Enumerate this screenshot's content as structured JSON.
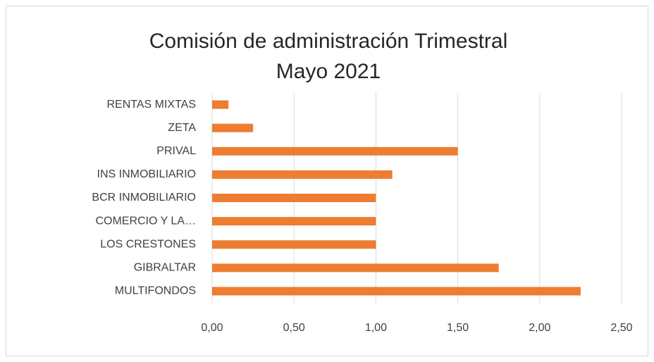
{
  "chart_data": {
    "type": "barh",
    "title": "Comisión de administración Trimestral",
    "subtitle": "Mayo 2021",
    "categories": [
      "MULTIFONDOS",
      "GIBRALTAR",
      "LOS CRESTONES",
      "COMERCIO Y LA…",
      "BCR INMOBILIARIO",
      "INS INMOBILIARIO",
      "PRIVAL",
      "ZETA",
      "RENTAS MIXTAS"
    ],
    "values": [
      2.25,
      1.75,
      1.0,
      1.0,
      1.0,
      1.1,
      1.5,
      0.25,
      0.1
    ],
    "color": "#ed7d31",
    "xlim": [
      0,
      2.5
    ],
    "xticks": [
      {
        "value": 0,
        "label": "0,00"
      },
      {
        "value": 0.5,
        "label": "0,50"
      },
      {
        "value": 1,
        "label": "1,00"
      },
      {
        "value": 1.5,
        "label": "1,50"
      },
      {
        "value": 2,
        "label": "2,00"
      },
      {
        "value": 2.5,
        "label": "2,50"
      }
    ],
    "grid": true
  }
}
